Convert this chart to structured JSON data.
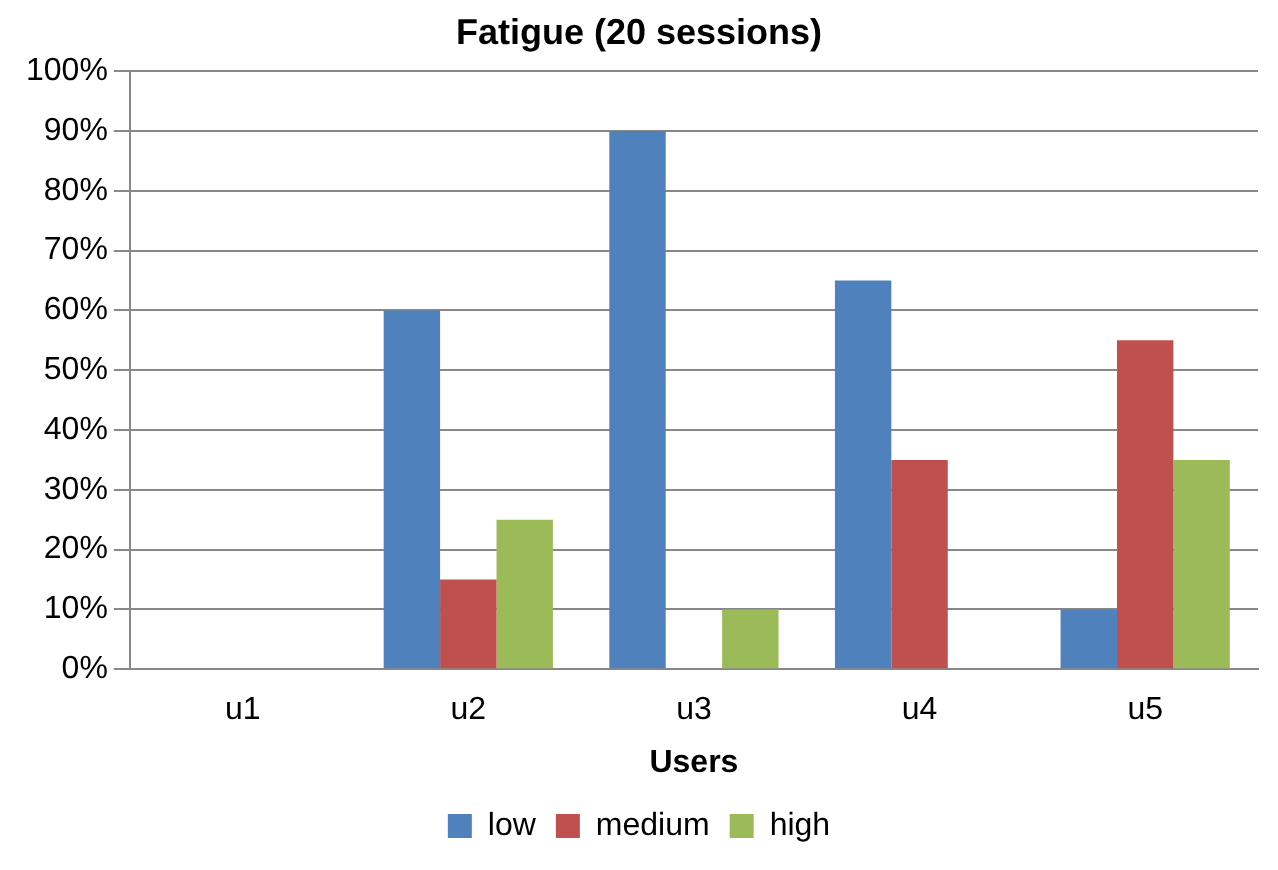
{
  "chart_data": {
    "type": "bar",
    "title": "Fatigue (20 sessions)",
    "xlabel": "Users",
    "categories": [
      "u1",
      "u2",
      "u3",
      "u4",
      "u5"
    ],
    "series": [
      {
        "name": "low",
        "color": "#4f81bd",
        "values": [
          0,
          60,
          90,
          65,
          10
        ]
      },
      {
        "name": "medium",
        "color": "#c0504d",
        "values": [
          0,
          15,
          0,
          35,
          55
        ]
      },
      {
        "name": "high",
        "color": "#9bbb59",
        "values": [
          0,
          25,
          10,
          0,
          35
        ]
      }
    ],
    "ylim": [
      0,
      100
    ],
    "yticks": [
      {
        "value": 0,
        "label": "0%"
      },
      {
        "value": 10,
        "label": "10%"
      },
      {
        "value": 20,
        "label": "20%"
      },
      {
        "value": 30,
        "label": "30%"
      },
      {
        "value": 40,
        "label": "40%"
      },
      {
        "value": 50,
        "label": "50%"
      },
      {
        "value": 60,
        "label": "60%"
      },
      {
        "value": 70,
        "label": "70%"
      },
      {
        "value": 80,
        "label": "80%"
      },
      {
        "value": 90,
        "label": "90%"
      },
      {
        "value": 100,
        "label": "100%"
      }
    ],
    "grid": "y",
    "legend": "bottom"
  }
}
